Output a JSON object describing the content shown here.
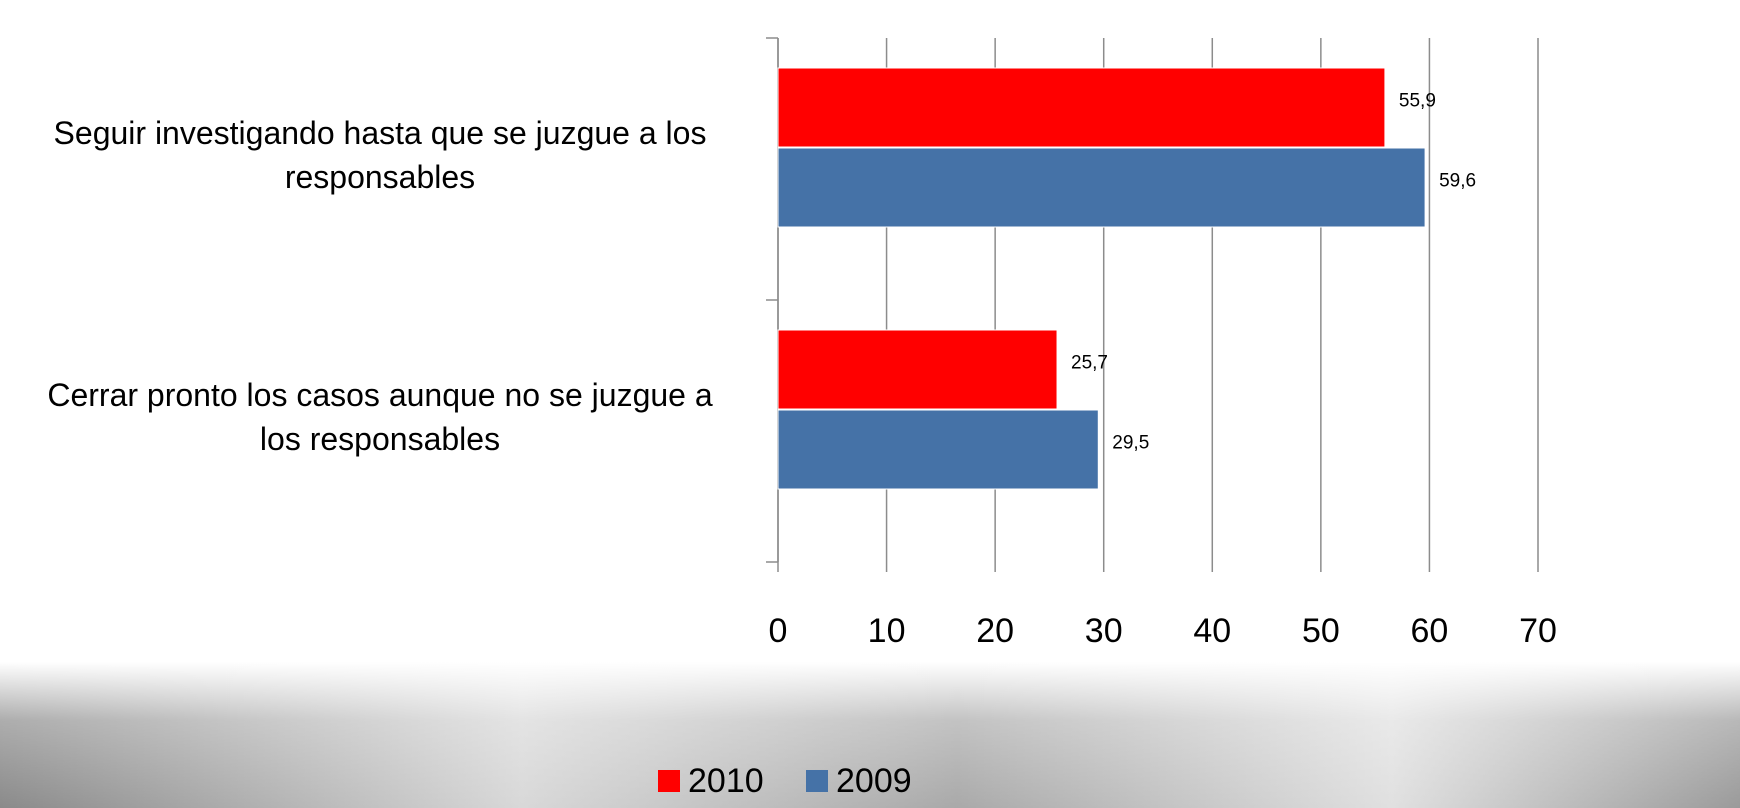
{
  "chart_data": {
    "type": "barh",
    "categories": [
      "Seguir investigando hasta que se juzgue a los responsables",
      "Cerrar pronto los casos aunque no se juzgue a los responsables"
    ],
    "series": [
      {
        "name": "2010",
        "color": "#ff0000",
        "values": [
          55.9,
          25.7
        ],
        "value_labels": [
          "55,9",
          "25,7"
        ]
      },
      {
        "name": "2009",
        "color": "#4572a7",
        "values": [
          59.6,
          29.5
        ],
        "value_labels": [
          "59,6",
          "29,5"
        ]
      }
    ],
    "xlim": [
      0,
      70
    ],
    "xticks": [
      0,
      10,
      20,
      30,
      40,
      50,
      60,
      70
    ],
    "grid": true,
    "legend": "bottom"
  }
}
